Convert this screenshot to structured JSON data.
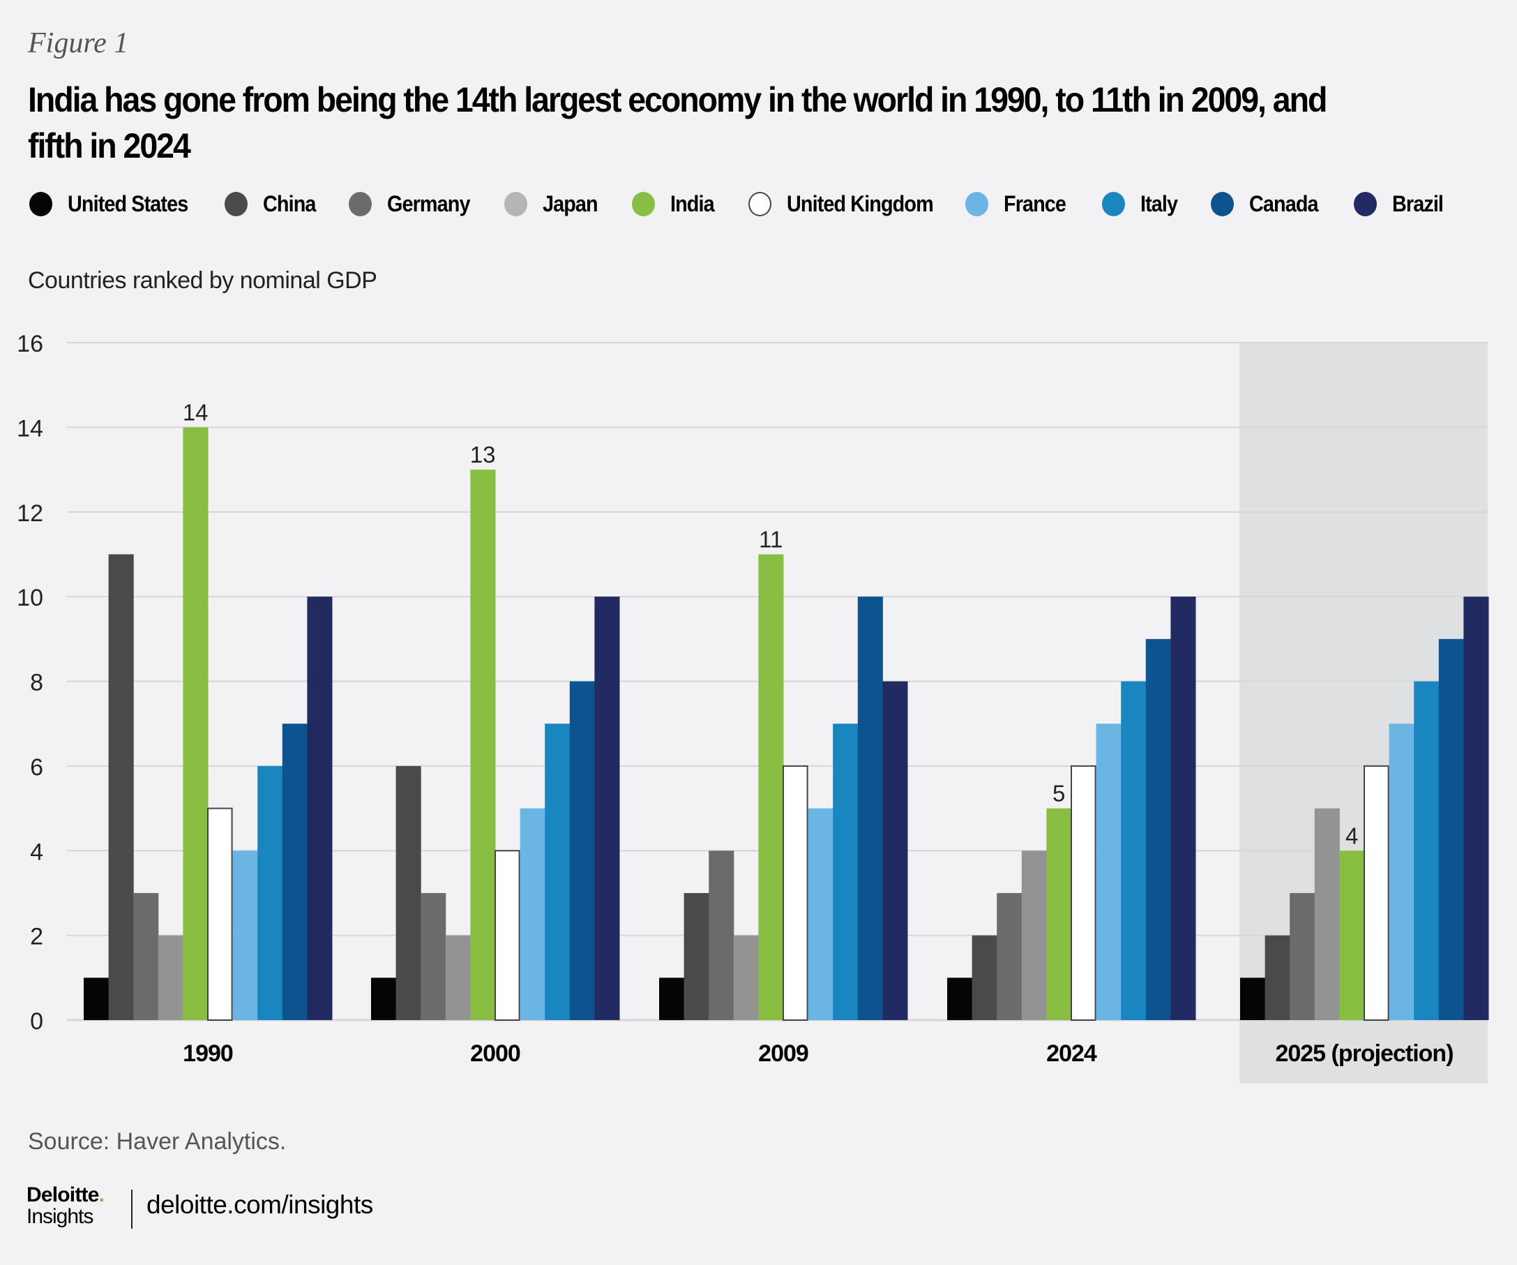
{
  "figure_label": "Figure 1",
  "title": "India has gone from being the 14th largest economy in the world in 1990, to 11th in 2009, and fifth in 2024",
  "subtitle": "Countries ranked by nominal GDP",
  "source": "Source: Haver Analytics.",
  "footer": {
    "logo_top": "Deloitte",
    "logo_dot": ".",
    "logo_bottom": "Insights",
    "site": "deloitte.com/insights"
  },
  "chart_data": {
    "type": "bar",
    "title": "India has gone from being the 14th largest economy in the world in 1990, to 11th in 2009, and fifth in 2024",
    "ylabel": "Countries ranked by nominal GDP",
    "xlabel": "",
    "ylim": [
      0,
      16
    ],
    "yticks": [
      0,
      2,
      4,
      6,
      8,
      10,
      12,
      14,
      16
    ],
    "grid": true,
    "legend_position": "top",
    "categories": [
      "1990",
      "2000",
      "2009",
      "2024",
      "2025 (projection)"
    ],
    "highlighted_category": "2025 (projection)",
    "series": [
      {
        "name": "United States",
        "color": "#040507",
        "values": [
          1,
          1,
          1,
          1,
          1
        ]
      },
      {
        "name": "China",
        "color": "#4a4a4a",
        "values": [
          11,
          6,
          3,
          2,
          2
        ]
      },
      {
        "name": "Germany",
        "color": "#6b6b6b",
        "values": [
          3,
          3,
          4,
          3,
          3
        ]
      },
      {
        "name": "Japan",
        "color": "#939393",
        "legend_color": "#b5b5b7",
        "values": [
          2,
          2,
          2,
          4,
          5
        ]
      },
      {
        "name": "India",
        "color": "#88bf43",
        "values": [
          14,
          13,
          11,
          5,
          4
        ],
        "data_labels": true
      },
      {
        "name": "United Kingdom",
        "color": "#ffffff",
        "outline": "#444444",
        "values": [
          5,
          4,
          6,
          6,
          6
        ]
      },
      {
        "name": "France",
        "color": "#6ab5e3",
        "values": [
          4,
          5,
          5,
          7,
          7
        ]
      },
      {
        "name": "Italy",
        "color": "#1a86c0",
        "values": [
          6,
          7,
          7,
          8,
          8
        ]
      },
      {
        "name": "Canada",
        "color": "#0c5390",
        "values": [
          7,
          8,
          10,
          9,
          9
        ]
      },
      {
        "name": "Brazil",
        "color": "#212a61",
        "values": [
          10,
          10,
          8,
          10,
          10
        ]
      }
    ]
  }
}
